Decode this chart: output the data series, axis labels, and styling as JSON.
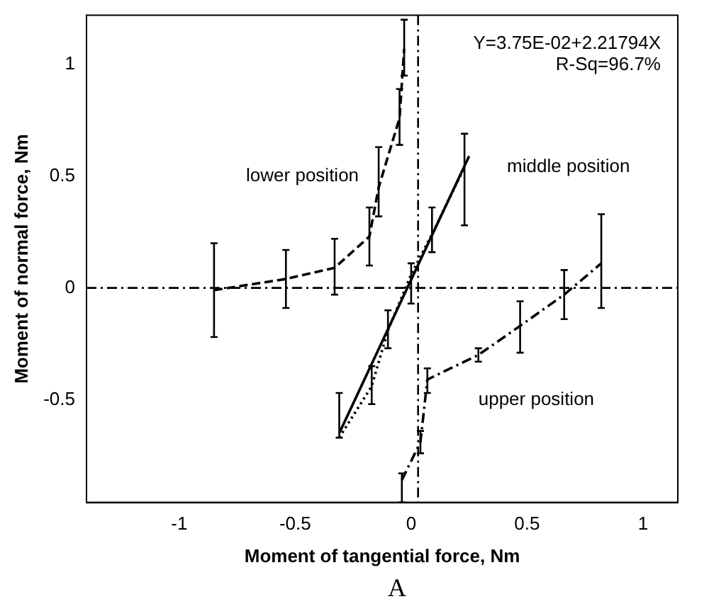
{
  "chart_data": {
    "type": "line",
    "xlabel": "Moment of tangential force, Nm",
    "ylabel": "Moment of normal force, Nm",
    "xlim": [
      -1.4,
      1.15
    ],
    "xticks": [
      -1,
      -0.5,
      0,
      0.5,
      1
    ],
    "ylim": [
      -0.96,
      1.22
    ],
    "yticks": [
      -0.5,
      0,
      0.5,
      1
    ],
    "grid": false,
    "legend": false,
    "marker": "none",
    "series": [
      {
        "name": "lower position",
        "color": "#000000",
        "line_style": "dashed",
        "x": [
          -0.85,
          -0.54,
          -0.33,
          -0.18,
          -0.14,
          -0.05,
          -0.03
        ],
        "values": [
          -0.01,
          0.04,
          0.09,
          0.23,
          0.45,
          0.76,
          1.07
        ],
        "errors": [
          [
            -0.22,
            0.2
          ],
          [
            -0.09,
            0.17
          ],
          [
            -0.03,
            0.22
          ],
          [
            0.1,
            0.36
          ],
          [
            0.32,
            0.63
          ],
          [
            0.64,
            0.89
          ],
          [
            0.95,
            1.2
          ]
        ]
      },
      {
        "name": "middle position",
        "color": "#000000",
        "line_style": "dotted",
        "x": [
          -0.31,
          -0.17,
          -0.1,
          0,
          0.09,
          0.23
        ],
        "values": [
          -0.67,
          -0.44,
          -0.19,
          0.06,
          0.24,
          0.54
        ],
        "errors": [
          [
            -0.67,
            -0.47
          ],
          [
            -0.52,
            -0.35
          ],
          [
            -0.27,
            -0.1
          ],
          [
            -0.07,
            0.11
          ],
          [
            0.16,
            0.36
          ],
          [
            0.28,
            0.69
          ]
        ]
      },
      {
        "type": "line",
        "color": "#000000",
        "line_style": "solid",
        "x": [
          -0.31,
          0.25
        ],
        "values": [
          -0.65,
          0.59
        ]
      },
      {
        "name": "upper position",
        "color": "#000000",
        "line_style": "dashdot",
        "x": [
          -0.04,
          0.04,
          0.07,
          0.29,
          0.47,
          0.66,
          0.82
        ],
        "values": [
          -0.86,
          -0.69,
          -0.41,
          -0.3,
          -0.17,
          -0.03,
          0.11
        ],
        "errors": [
          [
            -0.96,
            -0.83
          ],
          [
            -0.74,
            -0.64
          ],
          [
            -0.47,
            -0.36
          ],
          [
            -0.33,
            -0.27
          ],
          [
            -0.29,
            -0.06
          ],
          [
            -0.14,
            0.08
          ],
          [
            -0.09,
            0.33
          ]
        ]
      }
    ],
    "ref_lines": [
      {
        "axis": "x",
        "value": 0.03,
        "line_style": "dashdot",
        "color": "#000000"
      },
      {
        "axis": "y",
        "value": 0,
        "line_style": "dashdot",
        "color": "#000000"
      }
    ],
    "annotations": [
      "Y=3.75E-02+2.21794X",
      "R-Sq=96.7%",
      "A"
    ]
  }
}
